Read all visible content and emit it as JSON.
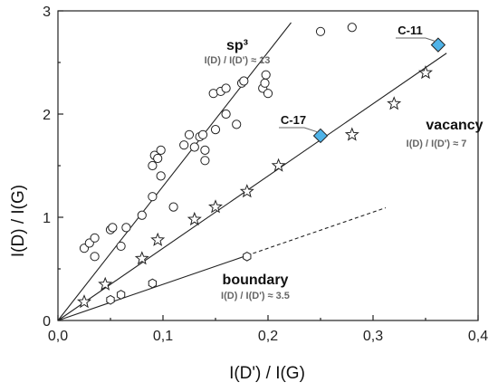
{
  "chart_data": {
    "type": "scatter",
    "xlabel": "I(D') / I(G)",
    "ylabel": "I(D) / I(G)",
    "xlim": [
      0,
      0.4
    ],
    "ylim": [
      0,
      3
    ],
    "x_ticks": [
      "0,0",
      "0,1",
      "0,2",
      "0,3",
      "0,4"
    ],
    "y_ticks": [
      "0",
      "1",
      "2",
      "3"
    ],
    "grid": false,
    "series": [
      {
        "marker": "circle",
        "points": [
          [
            0.025,
            0.7
          ],
          [
            0.03,
            0.75
          ],
          [
            0.035,
            0.8
          ],
          [
            0.035,
            0.62
          ],
          [
            0.05,
            0.88
          ],
          [
            0.052,
            0.9
          ],
          [
            0.06,
            0.72
          ],
          [
            0.065,
            0.9
          ],
          [
            0.08,
            1.02
          ],
          [
            0.09,
            1.2
          ],
          [
            0.09,
            1.5
          ],
          [
            0.092,
            1.6
          ],
          [
            0.095,
            1.57
          ],
          [
            0.098,
            1.65
          ],
          [
            0.098,
            1.4
          ],
          [
            0.11,
            1.1
          ],
          [
            0.12,
            1.7
          ],
          [
            0.125,
            1.8
          ],
          [
            0.13,
            1.68
          ],
          [
            0.135,
            1.78
          ],
          [
            0.138,
            1.8
          ],
          [
            0.14,
            1.55
          ],
          [
            0.14,
            1.65
          ],
          [
            0.148,
            2.2
          ],
          [
            0.15,
            1.85
          ],
          [
            0.155,
            2.22
          ],
          [
            0.16,
            2.0
          ],
          [
            0.16,
            2.25
          ],
          [
            0.17,
            1.9
          ],
          [
            0.175,
            2.3
          ],
          [
            0.177,
            2.32
          ],
          [
            0.195,
            2.25
          ],
          [
            0.197,
            2.3
          ],
          [
            0.198,
            2.38
          ],
          [
            0.2,
            2.2
          ],
          [
            0.25,
            2.8
          ],
          [
            0.28,
            2.84
          ]
        ]
      },
      {
        "marker": "star",
        "points": [
          [
            0.025,
            0.18
          ],
          [
            0.045,
            0.35
          ],
          [
            0.08,
            0.6
          ],
          [
            0.095,
            0.78
          ],
          [
            0.13,
            0.98
          ],
          [
            0.15,
            1.1
          ],
          [
            0.18,
            1.25
          ],
          [
            0.21,
            1.5
          ],
          [
            0.28,
            1.8
          ],
          [
            0.32,
            2.1
          ],
          [
            0.35,
            2.4
          ]
        ]
      },
      {
        "marker": "hexagon",
        "points": [
          [
            0.05,
            0.2
          ],
          [
            0.06,
            0.25
          ],
          [
            0.09,
            0.36
          ],
          [
            0.18,
            0.62
          ]
        ]
      },
      {
        "marker": "diamond",
        "color": "#4fb3e8",
        "points": [
          [
            0.25,
            1.79
          ],
          [
            0.362,
            2.67
          ]
        ]
      }
    ],
    "fit_lines": [
      {
        "label": "sp³",
        "ratio_label": "I(D) / I(D') ≈ 13",
        "slope": 13,
        "x_range": [
          0,
          0.222
        ],
        "style": "solid"
      },
      {
        "label": "vacancy",
        "ratio_label": "I(D) / I(D') ≈ 7",
        "slope": 7,
        "x_range": [
          0,
          0.37
        ],
        "style": "solid"
      },
      {
        "label": "boundary",
        "ratio_label": "I(D) / I(D') ≈ 3.5",
        "slope": 3.5,
        "x_range": [
          0,
          0.18
        ],
        "style": "solid"
      },
      {
        "slope": 3.5,
        "x_range": [
          0.18,
          0.312
        ],
        "style": "dashed"
      }
    ],
    "callouts": [
      {
        "label": "C-17",
        "x": 0.25,
        "y": 1.79
      },
      {
        "label": "C-11",
        "x": 0.362,
        "y": 2.67
      }
    ]
  }
}
